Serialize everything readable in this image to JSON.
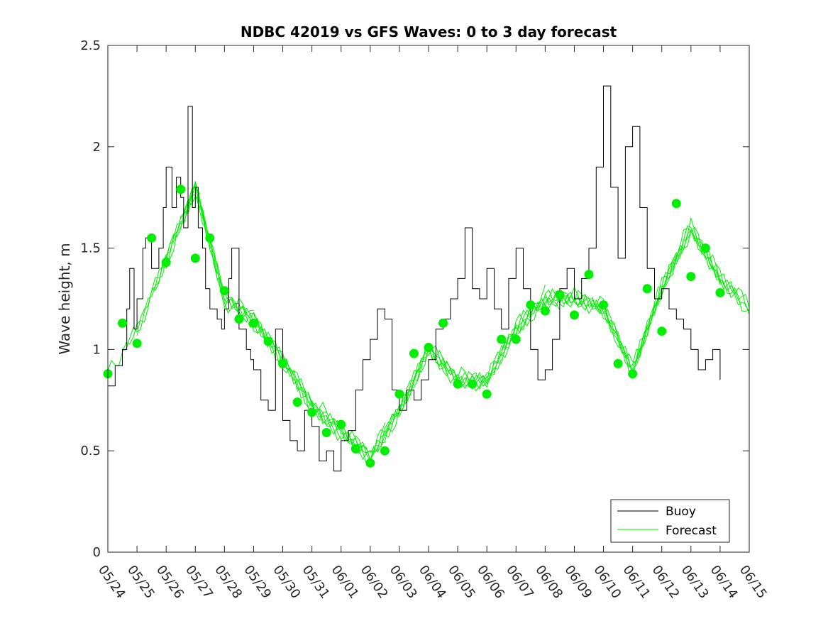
{
  "chart_data": {
    "type": "line",
    "title": "NDBC 42019 vs GFS Waves: 0 to 3 day forecast",
    "xlabel": "",
    "ylabel": "Wave height, m",
    "ylim": [
      0,
      2.5
    ],
    "yticks": [
      0,
      0.5,
      1,
      1.5,
      2,
      2.5
    ],
    "ytick_labels": [
      "0",
      "0.5",
      "1",
      "1.5",
      "2",
      "2.5"
    ],
    "xlim": [
      0,
      22
    ],
    "xtick_labels": [
      "05/24",
      "05/25",
      "05/26",
      "05/27",
      "05/28",
      "05/29",
      "05/30",
      "05/31",
      "06/01",
      "06/02",
      "06/03",
      "06/04",
      "06/05",
      "06/06",
      "06/07",
      "06/08",
      "06/09",
      "06/10",
      "06/11",
      "06/12",
      "06/13",
      "06/14",
      "06/15"
    ],
    "grid": false,
    "legend": {
      "placement": "bottom-right",
      "entries": [
        "Buoy",
        "Forecast"
      ]
    },
    "colors": {
      "buoy": "#000000",
      "forecast": "#00ee00",
      "axis": "#262626"
    },
    "series": [
      {
        "name": "Buoy",
        "x": [
          0.0,
          0.25,
          0.5,
          0.65,
          0.75,
          0.9,
          1.0,
          1.2,
          1.3,
          1.5,
          1.75,
          1.9,
          2.0,
          2.2,
          2.35,
          2.5,
          2.6,
          2.75,
          2.9,
          3.0,
          3.1,
          3.25,
          3.35,
          3.5,
          3.75,
          3.9,
          4.0,
          4.15,
          4.25,
          4.5,
          4.75,
          4.9,
          5.0,
          5.25,
          5.5,
          5.75,
          6.0,
          6.25,
          6.5,
          6.75,
          7.0,
          7.25,
          7.5,
          7.75,
          8.0,
          8.25,
          8.5,
          8.75,
          9.0,
          9.25,
          9.5,
          9.75,
          10.0,
          10.25,
          10.5,
          10.75,
          11.0,
          11.25,
          11.5,
          11.75,
          12.0,
          12.25,
          12.5,
          12.75,
          13.0,
          13.25,
          13.5,
          13.75,
          14.0,
          14.25,
          14.5,
          14.75,
          15.0,
          15.25,
          15.5,
          15.75,
          16.0,
          16.25,
          16.5,
          16.75,
          17.0,
          17.25,
          17.5,
          17.75,
          18.0,
          18.25,
          18.5,
          18.75,
          19.0,
          19.25,
          19.5,
          19.75,
          20.0,
          20.25,
          20.5,
          20.75,
          21.0
        ],
        "y": [
          0.82,
          0.92,
          1.0,
          1.2,
          1.4,
          1.1,
          1.25,
          1.5,
          1.55,
          1.4,
          1.5,
          1.7,
          1.9,
          1.7,
          1.85,
          1.75,
          1.6,
          2.2,
          1.7,
          1.8,
          1.6,
          1.5,
          1.3,
          1.2,
          1.15,
          1.1,
          1.2,
          1.35,
          1.5,
          1.1,
          1.0,
          0.95,
          0.9,
          0.75,
          0.7,
          1.1,
          0.65,
          0.55,
          0.5,
          0.7,
          0.62,
          0.45,
          0.5,
          0.4,
          0.55,
          0.6,
          0.8,
          0.95,
          1.05,
          1.2,
          1.15,
          0.8,
          0.7,
          0.8,
          0.75,
          0.85,
          0.95,
          1.1,
          1.15,
          1.25,
          1.35,
          1.6,
          1.3,
          1.25,
          1.4,
          1.2,
          1.1,
          1.35,
          1.5,
          1.3,
          1.0,
          0.85,
          0.9,
          1.05,
          1.3,
          1.4,
          1.25,
          1.35,
          1.5,
          1.9,
          2.3,
          1.8,
          1.45,
          2.0,
          2.1,
          1.7,
          1.4,
          1.25,
          1.3,
          1.2,
          1.15,
          1.1,
          1.0,
          0.9,
          0.95,
          1.0,
          0.85
        ]
      },
      {
        "name": "Forecast",
        "x": [
          0.0,
          1.0,
          2.0,
          3.0,
          4.0,
          5.0,
          6.0,
          7.0,
          8.0,
          9.0,
          10.0,
          11.0,
          12.0,
          13.0,
          14.0,
          15.0,
          16.0,
          17.0,
          18.0,
          19.0,
          20.0,
          21.0,
          22.0
        ],
        "y": [
          0.88,
          1.1,
          1.45,
          1.8,
          1.25,
          1.15,
          0.95,
          0.72,
          0.6,
          0.47,
          0.7,
          1.0,
          0.85,
          0.85,
          1.1,
          1.25,
          1.25,
          1.2,
          0.9,
          1.3,
          1.6,
          1.35,
          1.2
        ]
      }
    ],
    "analysis_points": {
      "x": [
        0.0,
        0.5,
        1.0,
        1.5,
        2.0,
        2.5,
        3.0,
        3.5,
        4.0,
        4.5,
        5.0,
        5.5,
        6.0,
        6.5,
        7.0,
        7.5,
        8.0,
        8.5,
        9.0,
        9.5,
        10.0,
        10.5,
        11.0,
        11.5,
        12.0,
        12.5,
        13.0,
        13.5,
        14.0,
        14.5,
        15.0,
        15.5,
        16.0,
        16.5,
        17.0,
        17.5,
        18.0,
        18.5,
        19.0,
        19.5,
        20.0,
        20.5,
        21.0
      ],
      "y": [
        0.88,
        1.13,
        1.03,
        1.55,
        1.43,
        1.79,
        1.45,
        1.55,
        1.29,
        1.15,
        1.13,
        1.04,
        0.93,
        0.74,
        0.69,
        0.59,
        0.63,
        0.51,
        0.44,
        0.5,
        0.78,
        0.98,
        1.01,
        1.13,
        0.83,
        0.83,
        0.78,
        1.05,
        1.05,
        1.22,
        1.19,
        1.27,
        1.17,
        1.37,
        1.22,
        0.93,
        0.88,
        1.3,
        1.09,
        1.72,
        1.36,
        1.5,
        1.28
      ]
    }
  }
}
